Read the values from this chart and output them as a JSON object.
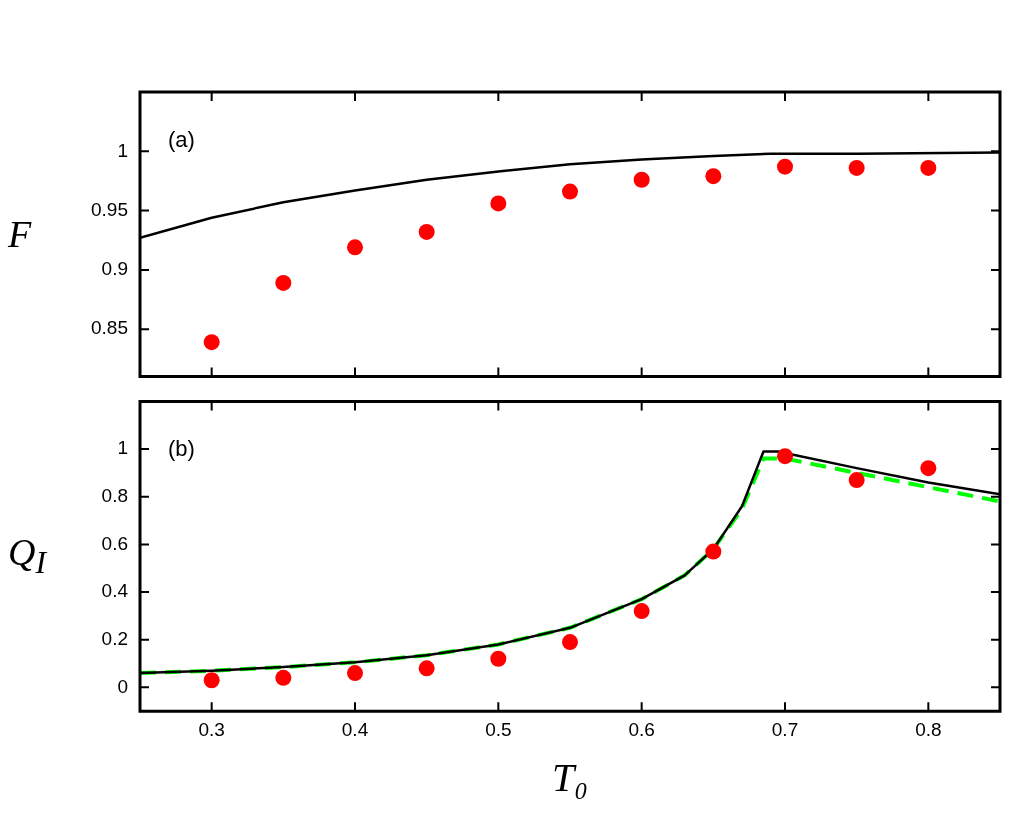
{
  "chart_data": [
    {
      "type": "line",
      "ylabel": "F",
      "annotations": [
        "(a)"
      ],
      "xlim": [
        0.25,
        0.85
      ],
      "xticks": [
        0.3,
        0.4,
        0.5,
        0.6,
        0.7,
        0.8
      ],
      "ylim": [
        0.81,
        1.05
      ],
      "yticks": [
        0.85,
        0.9,
        0.95,
        1
      ],
      "tick_labels": "y",
      "series": [
        {
          "color": "#000000",
          "line_style": "solid",
          "marker": "none",
          "x": [
            0.25,
            0.3,
            0.35,
            0.4,
            0.45,
            0.5,
            0.55,
            0.6,
            0.65,
            0.69,
            0.75,
            0.85
          ],
          "values": [
            0.927,
            0.944,
            0.957,
            0.967,
            0.976,
            0.983,
            0.989,
            0.993,
            0.996,
            0.998,
            0.998,
            0.999
          ]
        },
        {
          "type": "scatter",
          "color": "#ff0000",
          "marker": "circle",
          "x": [
            0.3,
            0.35,
            0.4,
            0.45,
            0.5,
            0.55,
            0.6,
            0.65,
            0.7,
            0.75,
            0.8
          ],
          "values": [
            0.839,
            0.889,
            0.919,
            0.932,
            0.956,
            0.966,
            0.976,
            0.979,
            0.987,
            0.986,
            0.986
          ]
        }
      ]
    },
    {
      "type": "line",
      "xlabel": "T₀",
      "ylabel": "Q$_{I}$",
      "annotations": [
        "(b)"
      ],
      "xlim": [
        0.25,
        0.85
      ],
      "xticks": [
        0.3,
        0.4,
        0.5,
        0.6,
        0.7,
        0.8
      ],
      "ylim": [
        -0.1,
        1.2
      ],
      "yticks": [
        0,
        0.2,
        0.4,
        0.6,
        0.8,
        1
      ],
      "series": [
        {
          "color": "#000000",
          "line_style": "solid",
          "marker": "none",
          "x": [
            0.25,
            0.3,
            0.35,
            0.4,
            0.45,
            0.5,
            0.55,
            0.6,
            0.63,
            0.65,
            0.67,
            0.685,
            0.695,
            0.75,
            0.8,
            0.85
          ],
          "values": [
            0.06,
            0.07,
            0.085,
            0.105,
            0.135,
            0.18,
            0.25,
            0.37,
            0.47,
            0.58,
            0.76,
            0.99,
            0.99,
            0.92,
            0.86,
            0.81
          ]
        },
        {
          "color": "#00ff00",
          "line_style": "dashed",
          "marker": "none",
          "x": [
            0.25,
            0.3,
            0.35,
            0.4,
            0.45,
            0.5,
            0.55,
            0.6,
            0.63,
            0.65,
            0.67,
            0.685,
            0.7,
            0.75,
            0.8,
            0.85
          ],
          "values": [
            0.06,
            0.07,
            0.085,
            0.105,
            0.135,
            0.18,
            0.25,
            0.37,
            0.47,
            0.58,
            0.75,
            0.96,
            0.96,
            0.9,
            0.84,
            0.78
          ]
        },
        {
          "type": "scatter",
          "color": "#ff0000",
          "marker": "circle",
          "x": [
            0.3,
            0.35,
            0.4,
            0.45,
            0.5,
            0.55,
            0.6,
            0.65,
            0.7,
            0.75,
            0.8
          ],
          "values": [
            0.03,
            0.04,
            0.06,
            0.08,
            0.12,
            0.19,
            0.32,
            0.57,
            0.97,
            0.87,
            0.92
          ]
        }
      ]
    }
  ]
}
